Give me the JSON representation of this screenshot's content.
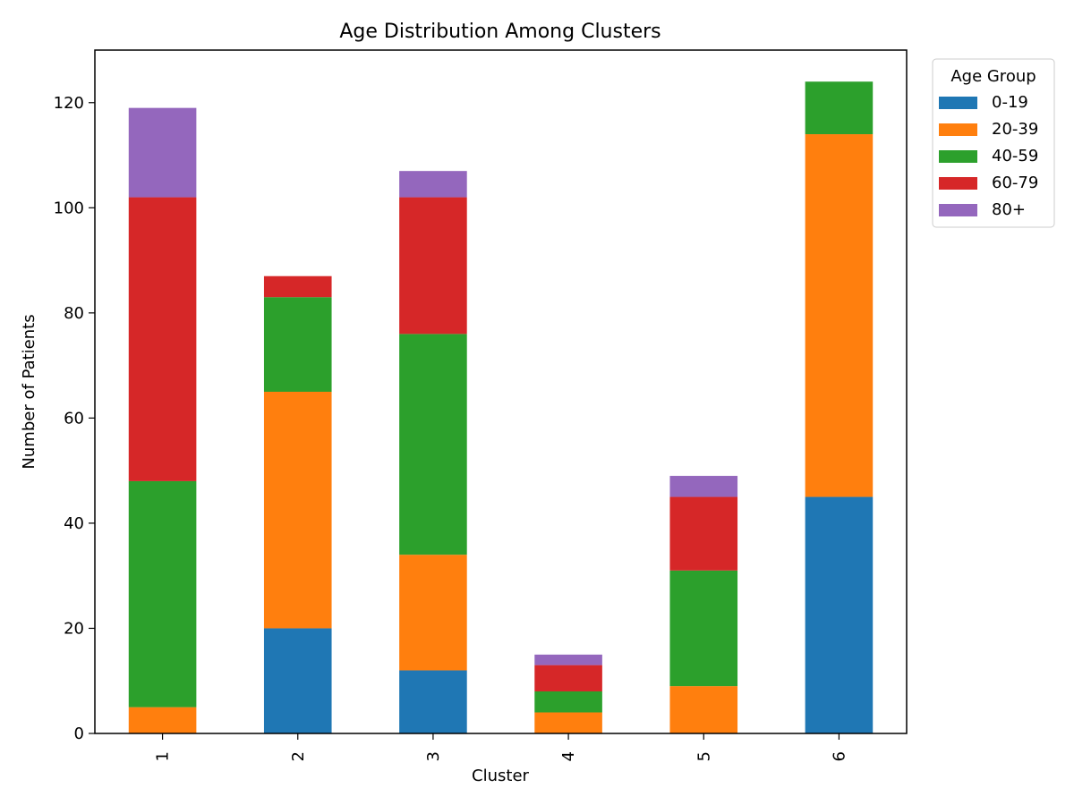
{
  "chart_data": {
    "type": "bar",
    "stacked": true,
    "title": "Age Distribution Among Clusters",
    "xlabel": "Cluster",
    "ylabel": "Number of Patients",
    "categories": [
      "1",
      "2",
      "3",
      "4",
      "5",
      "6"
    ],
    "ylim": [
      0,
      130
    ],
    "yticks": [
      0,
      20,
      40,
      60,
      80,
      100,
      120
    ],
    "legend": {
      "title": "Age Group",
      "placement": "outside-top-right"
    },
    "grid": false,
    "series": [
      {
        "name": "0-19",
        "color": "#1f77b4",
        "values": [
          0,
          20,
          12,
          0,
          0,
          45
        ]
      },
      {
        "name": "20-39",
        "color": "#ff7f0e",
        "values": [
          5,
          45,
          22,
          4,
          9,
          69
        ]
      },
      {
        "name": "40-59",
        "color": "#2ca02c",
        "values": [
          43,
          18,
          42,
          4,
          22,
          10
        ]
      },
      {
        "name": "60-79",
        "color": "#d62728",
        "values": [
          54,
          4,
          26,
          5,
          14,
          0
        ]
      },
      {
        "name": "80+",
        "color": "#9467bd",
        "values": [
          17,
          0,
          5,
          2,
          4,
          0
        ]
      }
    ]
  }
}
